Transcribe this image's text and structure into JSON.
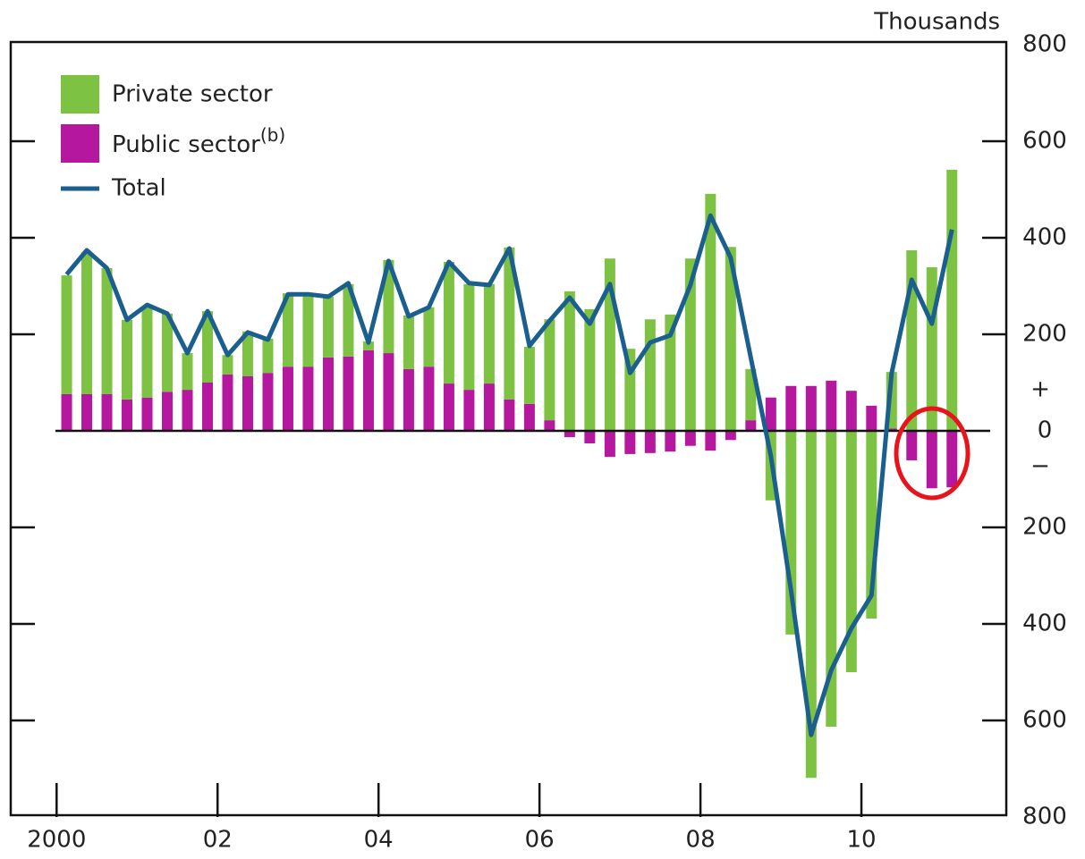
{
  "chart_data": {
    "type": "stacked-bar-line",
    "axis_unit_label": "Thousands",
    "sign_labels": [
      "+",
      "−"
    ],
    "x": [
      2000.125,
      2000.375,
      2000.625,
      2000.875,
      2001.125,
      2001.375,
      2001.625,
      2001.875,
      2002.125,
      2002.375,
      2002.625,
      2002.875,
      2003.125,
      2003.375,
      2003.625,
      2003.875,
      2004.125,
      2004.375,
      2004.625,
      2004.875,
      2005.125,
      2005.375,
      2005.625,
      2005.875,
      2006.125,
      2006.375,
      2006.625,
      2006.875,
      2007.125,
      2007.375,
      2007.625,
      2007.875,
      2008.125,
      2008.375,
      2008.625,
      2008.875,
      2009.125,
      2009.375,
      2009.625,
      2009.875,
      2010.125,
      2010.375,
      2010.625,
      2010.875,
      2011.125
    ],
    "xlim": [
      1999.43,
      2011.8
    ],
    "xticks": [
      2000,
      {
        "value": 2002,
        "label": "02"
      },
      {
        "value": 2004,
        "label": "04"
      },
      {
        "value": 2006,
        "label": "06"
      },
      {
        "value": 2008,
        "label": "08"
      },
      {
        "value": 2010,
        "label": "10"
      }
    ],
    "ylim": [
      -800,
      800
    ],
    "yticks": [
      {
        "value": -800,
        "label": "800"
      },
      {
        "value": -600,
        "label": "600"
      },
      {
        "value": -400,
        "label": "400"
      },
      {
        "value": -200,
        "label": "200"
      },
      0,
      200,
      400,
      600,
      800
    ],
    "series": [
      {
        "name": "Public sector",
        "name_note": "(b)",
        "color": "#b5179e",
        "values": [
          76,
          76,
          76,
          65,
          69,
          81,
          85,
          100,
          117,
          113,
          120,
          133,
          133,
          152,
          154,
          167,
          161,
          128,
          133,
          98,
          85,
          98,
          65,
          56,
          22,
          -13,
          -26,
          -54,
          -48,
          -46,
          -43,
          -31,
          -41,
          -19,
          22,
          69,
          93,
          93,
          104,
          83,
          52,
          5,
          -61,
          -119,
          -117
        ]
      },
      {
        "name": "Private sector",
        "color": "#7dc242",
        "values": [
          246,
          294,
          261,
          165,
          188,
          162,
          76,
          148,
          40,
          93,
          71,
          152,
          150,
          126,
          150,
          18,
          193,
          111,
          123,
          252,
          219,
          206,
          315,
          118,
          209,
          289,
          252,
          357,
          170,
          231,
          241,
          357,
          491,
          381,
          106,
          -144,
          -422,
          -719,
          -613,
          -500,
          -389,
          117,
          374,
          339,
          541
        ]
      },
      {
        "name": "Total",
        "color": "#1a5f8e",
        "type": "line",
        "values": [
          324,
          374,
          337,
          230,
          261,
          243,
          161,
          248,
          157,
          204,
          189,
          283,
          283,
          278,
          306,
          183,
          352,
          237,
          256,
          350,
          306,
          302,
          378,
          176,
          228,
          276,
          222,
          304,
          120,
          183,
          198,
          302,
          446,
          359,
          152,
          -52,
          -330,
          -630,
          -496,
          -409,
          -341,
          119,
          313,
          222,
          417
        ]
      }
    ]
  }
}
